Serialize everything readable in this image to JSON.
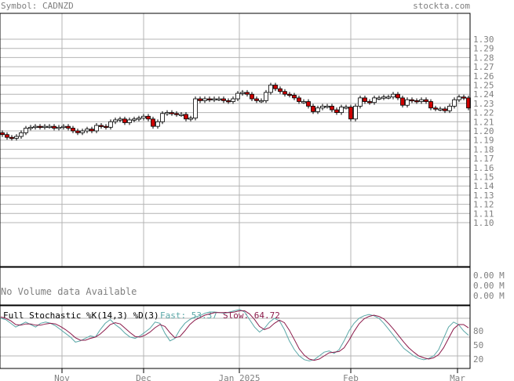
{
  "header": {
    "symbol_label": "Symbol: CADNZD",
    "site": "stockta.com"
  },
  "colors": {
    "up": "#ffffff",
    "down": "#cc0000",
    "grid": "#b4b4b4",
    "fast": "#5aa7a7",
    "slow": "#8b1a4a",
    "text": "#808080"
  },
  "volume": {
    "message": "No Volume data Available",
    "labels": [
      "0.00 M",
      "0.00 M",
      "0.00 M"
    ]
  },
  "stochastic": {
    "title": "Full Stochastic %K(14,3) %D(3)",
    "fast_label": "Fast: 53.37",
    "slow_label": "Slow: 64.72",
    "y_ticks": [
      "80",
      "50",
      "20"
    ]
  },
  "chart_data": {
    "type": "candlestick",
    "y_ticks": [
      "1.30",
      "1.29",
      "1.28",
      "1.27",
      "1.26",
      "1.25",
      "1.24",
      "1.23",
      "1.22",
      "1.21",
      "1.20",
      "1.19",
      "1.18",
      "1.17",
      "1.16",
      "1.15",
      "1.14",
      "1.13",
      "1.12",
      "1.11",
      "1.10"
    ],
    "ylim": [
      1.1,
      1.3
    ],
    "x_ticks": [
      "Nov",
      "Dec",
      "Jan 2025",
      "Feb",
      "Mar"
    ],
    "close": [
      1.196,
      1.193,
      1.192,
      1.194,
      1.198,
      1.203,
      1.204,
      1.205,
      1.204,
      1.205,
      1.205,
      1.203,
      1.204,
      1.205,
      1.203,
      1.2,
      1.198,
      1.2,
      1.202,
      1.2,
      1.206,
      1.205,
      1.204,
      1.21,
      1.212,
      1.213,
      1.209,
      1.212,
      1.213,
      1.214,
      1.216,
      1.213,
      1.205,
      1.21,
      1.219,
      1.22,
      1.219,
      1.218,
      1.218,
      1.213,
      1.214,
      1.235,
      1.233,
      1.235,
      1.234,
      1.235,
      1.235,
      1.233,
      1.232,
      1.235,
      1.241,
      1.242,
      1.24,
      1.235,
      1.233,
      1.233,
      1.242,
      1.25,
      1.246,
      1.243,
      1.24,
      1.239,
      1.236,
      1.232,
      1.232,
      1.227,
      1.221,
      1.225,
      1.227,
      1.227,
      1.223,
      1.22,
      1.226,
      1.226,
      1.213,
      1.227,
      1.236,
      1.232,
      1.231,
      1.236,
      1.236,
      1.237,
      1.237,
      1.24,
      1.236,
      1.228,
      1.234,
      1.233,
      1.232,
      1.234,
      1.232,
      1.225,
      1.224,
      1.224,
      1.222,
      1.227,
      1.234,
      1.237,
      1.236,
      1.225
    ],
    "fast": [
      80,
      78,
      72,
      66,
      70,
      74,
      70,
      66,
      72,
      74,
      72,
      68,
      62,
      56,
      50,
      42,
      44,
      48,
      52,
      50,
      62,
      72,
      78,
      70,
      64,
      56,
      50,
      48,
      52,
      58,
      64,
      74,
      72,
      56,
      44,
      48,
      62,
      72,
      78,
      82,
      84,
      88,
      90,
      90,
      89,
      88,
      90,
      92,
      94,
      90,
      78,
      66,
      58,
      64,
      74,
      80,
      76,
      62,
      44,
      30,
      20,
      14,
      12,
      14,
      20,
      26,
      28,
      24,
      30,
      44,
      60,
      72,
      80,
      84,
      86,
      84,
      80,
      72,
      62,
      52,
      42,
      32,
      26,
      20,
      16,
      14,
      16,
      20,
      30,
      48,
      66,
      74,
      70,
      60,
      53
    ],
    "slow": [
      82,
      80,
      76,
      70,
      69,
      71,
      71,
      69,
      69,
      71,
      72,
      71,
      67,
      62,
      56,
      49,
      45,
      45,
      48,
      50,
      55,
      62,
      70,
      73,
      71,
      64,
      57,
      51,
      50,
      53,
      58,
      65,
      70,
      67,
      57,
      49,
      51,
      60,
      70,
      77,
      81,
      85,
      87,
      89,
      89,
      89,
      89,
      90,
      92,
      92,
      87,
      78,
      67,
      62,
      65,
      72,
      77,
      73,
      61,
      46,
      31,
      21,
      15,
      13,
      15,
      20,
      25,
      26,
      27,
      33,
      45,
      59,
      71,
      79,
      83,
      85,
      83,
      79,
      71,
      62,
      52,
      42,
      33,
      26,
      20,
      17,
      15,
      17,
      22,
      33,
      48,
      63,
      70,
      70,
      64.72
    ]
  }
}
